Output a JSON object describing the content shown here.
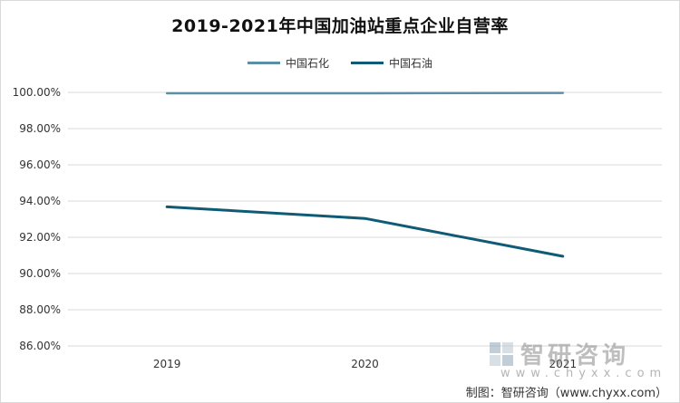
{
  "title": "2019-2021年中国加油站重点企业自营率",
  "colors": {
    "sinopec": "#5b8fa8",
    "petrochina": "#0f5a74",
    "grid": "#d9d9d9"
  },
  "legend": [
    {
      "label": "中国石化",
      "color": "#5b8fa8"
    },
    {
      "label": "中国石油",
      "color": "#0f5a74"
    }
  ],
  "watermark": {
    "name": "智研咨询",
    "sub": "www.chyxx.com"
  },
  "source": "制图：智研咨询（www.chyxx.com）",
  "chart_data": {
    "type": "line",
    "title": "2019-2021年中国加油站重点企业自营率",
    "categories": [
      "2019",
      "2020",
      "2021"
    ],
    "series": [
      {
        "name": "中国石化",
        "values": [
          0.9995,
          0.9995,
          0.9997
        ]
      },
      {
        "name": "中国石油",
        "values": [
          0.9368,
          0.9304,
          0.9095
        ]
      }
    ],
    "ylim": [
      0.86,
      1.0
    ],
    "yticks": [
      "86.00%",
      "88.00%",
      "90.00%",
      "92.00%",
      "94.00%",
      "96.00%",
      "98.00%",
      "100.00%"
    ],
    "grid": true,
    "legend_position": "top"
  }
}
